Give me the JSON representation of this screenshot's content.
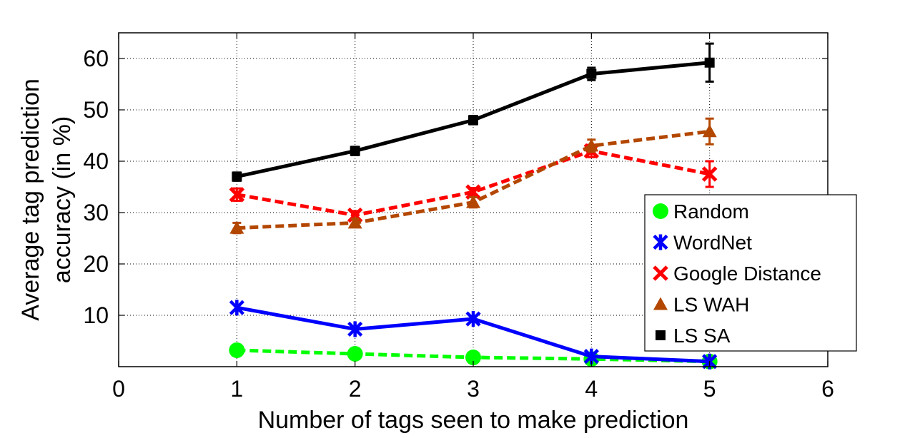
{
  "chart_data": {
    "type": "line",
    "xlabel": "Number of tags seen to make prediction",
    "ylabel_lines": [
      "Average tag prediction",
      "accuracy (in %)"
    ],
    "xlim": [
      0,
      6
    ],
    "ylim": [
      0,
      65
    ],
    "xticks": [
      0,
      1,
      2,
      3,
      4,
      5,
      6
    ],
    "yticks": [
      10,
      20,
      30,
      40,
      50,
      60
    ],
    "grid": true,
    "legend_position": "right",
    "series": [
      {
        "name": "Random",
        "color": "#00ff00",
        "line_style": "dashed",
        "marker": "circle",
        "x": [
          1,
          2,
          3,
          4,
          5
        ],
        "y": [
          3.2,
          2.5,
          1.8,
          1.5,
          1.0
        ],
        "err": [
          0,
          0,
          0,
          0,
          0
        ]
      },
      {
        "name": "WordNet",
        "color": "#0000ff",
        "line_style": "solid",
        "marker": "star",
        "x": [
          1,
          2,
          3,
          4,
          5
        ],
        "y": [
          11.5,
          7.3,
          9.3,
          2.0,
          1.0
        ],
        "err": [
          0,
          0,
          0,
          0,
          0
        ]
      },
      {
        "name": "Google Distance",
        "color": "#ff0000",
        "line_style": "dashed",
        "marker": "x",
        "x": [
          1,
          2,
          3,
          4,
          5
        ],
        "y": [
          33.5,
          29.5,
          34.0,
          42.0,
          37.5
        ],
        "err": [
          1.2,
          0.8,
          0.8,
          1.2,
          2.5
        ]
      },
      {
        "name": "LS WAH",
        "color": "#b34700",
        "line_style": "dashed",
        "marker": "triangle",
        "x": [
          1,
          2,
          3,
          4,
          5
        ],
        "y": [
          27.0,
          28.0,
          32.0,
          43.0,
          45.8
        ],
        "err": [
          1.0,
          0.8,
          1.0,
          1.2,
          2.5
        ]
      },
      {
        "name": "LS SA",
        "color": "#000000",
        "line_style": "solid",
        "marker": "square",
        "x": [
          1,
          2,
          3,
          4,
          5
        ],
        "y": [
          37.0,
          42.0,
          48.0,
          57.0,
          59.2
        ],
        "err": [
          0.8,
          0.8,
          0.8,
          1.2,
          3.7
        ]
      }
    ]
  }
}
